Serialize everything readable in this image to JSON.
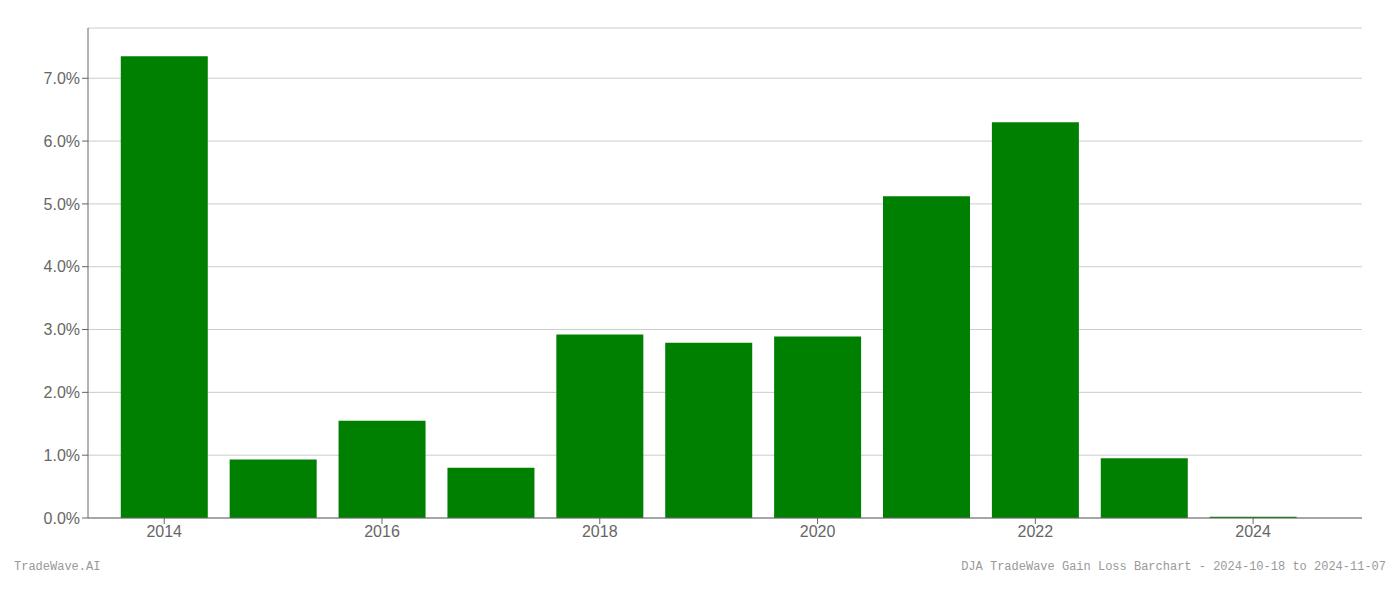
{
  "chart_data": {
    "type": "bar",
    "x": [
      2014,
      2015,
      2016,
      2017,
      2018,
      2019,
      2020,
      2021,
      2022,
      2023,
      2024
    ],
    "values": [
      7.35,
      0.93,
      1.55,
      0.8,
      2.92,
      2.79,
      2.89,
      5.12,
      6.3,
      0.95,
      0.02
    ],
    "color": "#008000",
    "xlim": [
      2013.3,
      2025.0
    ],
    "xticks": [
      2014,
      2016,
      2018,
      2020,
      2022,
      2024
    ],
    "ylim": [
      0,
      7.8
    ],
    "yticks": [
      {
        "value": 0.0,
        "label": "0.0%"
      },
      {
        "value": 1.0,
        "label": "1.0%"
      },
      {
        "value": 2.0,
        "label": "2.0%"
      },
      {
        "value": 3.0,
        "label": "3.0%"
      },
      {
        "value": 4.0,
        "label": "4.0%"
      },
      {
        "value": 5.0,
        "label": "5.0%"
      },
      {
        "value": 6.0,
        "label": "6.0%"
      },
      {
        "value": 7.0,
        "label": "7.0%"
      }
    ],
    "grid": true,
    "annotations": [
      "TradeWave.AI",
      "DJA TradeWave Gain Loss Barchart - 2024-10-18 to 2024-11-07"
    ]
  }
}
